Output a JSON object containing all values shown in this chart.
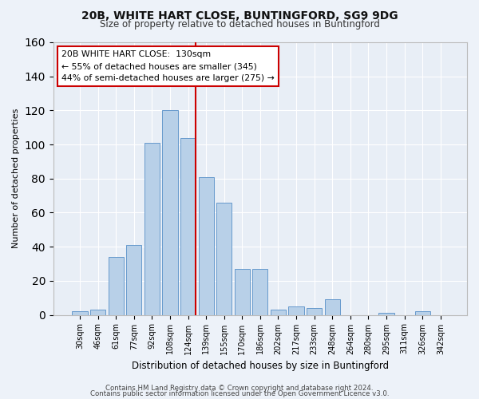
{
  "title": "20B, WHITE HART CLOSE, BUNTINGFORD, SG9 9DG",
  "subtitle": "Size of property relative to detached houses in Buntingford",
  "xlabel": "Distribution of detached houses by size in Buntingford",
  "ylabel": "Number of detached properties",
  "bar_color": "#b8d0e8",
  "bar_edge_color": "#6699cc",
  "background_color": "#e8eef6",
  "grid_color": "#ffffff",
  "bins": [
    "30sqm",
    "46sqm",
    "61sqm",
    "77sqm",
    "92sqm",
    "108sqm",
    "124sqm",
    "139sqm",
    "155sqm",
    "170sqm",
    "186sqm",
    "202sqm",
    "217sqm",
    "233sqm",
    "248sqm",
    "264sqm",
    "280sqm",
    "295sqm",
    "311sqm",
    "326sqm",
    "342sqm"
  ],
  "values": [
    2,
    3,
    34,
    41,
    101,
    120,
    104,
    81,
    66,
    27,
    27,
    3,
    5,
    4,
    9,
    0,
    0,
    1,
    0,
    2,
    0
  ],
  "annotation_line1": "20B WHITE HART CLOSE:  130sqm",
  "annotation_line2": "← 55% of detached houses are smaller (345)",
  "annotation_line3": "44% of semi-detached houses are larger (275) →",
  "annotation_box_color": "#ffffff",
  "annotation_box_edge": "#cc0000",
  "vline_color": "#cc0000",
  "ylim": [
    0,
    160
  ],
  "yticks": [
    0,
    20,
    40,
    60,
    80,
    100,
    120,
    140,
    160
  ],
  "footer1": "Contains HM Land Registry data © Crown copyright and database right 2024.",
  "footer2": "Contains public sector information licensed under the Open Government Licence v3.0.",
  "vline_x": 6.42
}
